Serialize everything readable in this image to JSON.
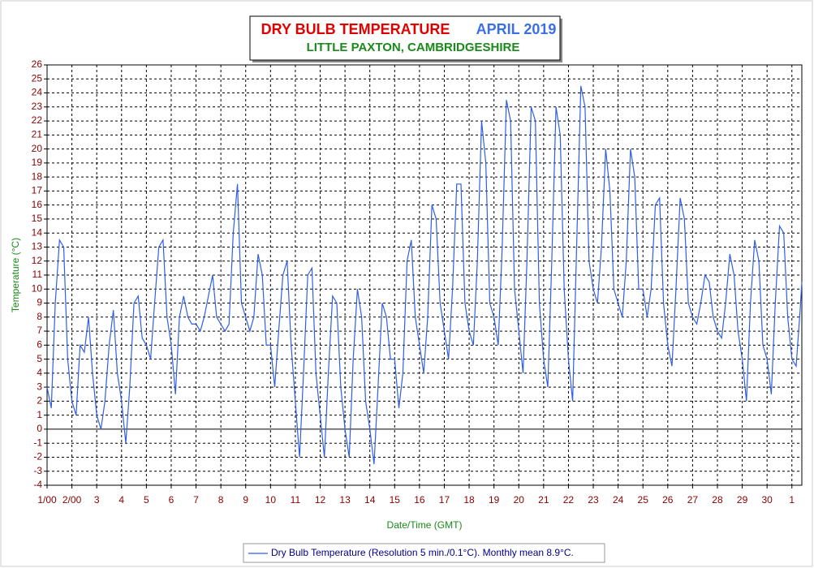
{
  "chart_data": {
    "type": "line",
    "title": "DRY BULB TEMPERATURE",
    "title_date": "APRIL 2019",
    "subtitle": "LITTLE PAXTON, CAMBRIDGESHIRE",
    "y_label": "Temperature (°C)",
    "x_label": "Date/Time (GMT)",
    "xlim": [
      0,
      30.4
    ],
    "xticks": [
      {
        "value": 0,
        "label": "1/00"
      },
      {
        "value": 1,
        "label": "2/00"
      },
      {
        "value": 2,
        "label": "3"
      },
      {
        "value": 3,
        "label": "4"
      },
      {
        "value": 4,
        "label": "5"
      },
      {
        "value": 5,
        "label": "6"
      },
      {
        "value": 6,
        "label": "7"
      },
      {
        "value": 7,
        "label": "8"
      },
      {
        "value": 8,
        "label": "9"
      },
      {
        "value": 9,
        "label": "10"
      },
      {
        "value": 10,
        "label": "11"
      },
      {
        "value": 11,
        "label": "12"
      },
      {
        "value": 12,
        "label": "13"
      },
      {
        "value": 13,
        "label": "14"
      },
      {
        "value": 14,
        "label": "15"
      },
      {
        "value": 15,
        "label": "16"
      },
      {
        "value": 16,
        "label": "17"
      },
      {
        "value": 17,
        "label": "18"
      },
      {
        "value": 18,
        "label": "19"
      },
      {
        "value": 19,
        "label": "20"
      },
      {
        "value": 20,
        "label": "21"
      },
      {
        "value": 21,
        "label": "22"
      },
      {
        "value": 22,
        "label": "23"
      },
      {
        "value": 23,
        "label": "24"
      },
      {
        "value": 24,
        "label": "25"
      },
      {
        "value": 25,
        "label": "26"
      },
      {
        "value": 26,
        "label": "27"
      },
      {
        "value": 27,
        "label": "28"
      },
      {
        "value": 28,
        "label": "29"
      },
      {
        "value": 29,
        "label": "30"
      },
      {
        "value": 30,
        "label": "1"
      }
    ],
    "ylim": [
      -4,
      26
    ],
    "yticks": [
      -4,
      -3,
      -2,
      -1,
      0,
      1,
      2,
      3,
      4,
      5,
      6,
      7,
      8,
      9,
      10,
      11,
      12,
      13,
      14,
      15,
      16,
      17,
      18,
      19,
      20,
      21,
      22,
      23,
      24,
      25,
      26
    ],
    "grid": true,
    "x": [
      0,
      0.17,
      0.33,
      0.5,
      0.67,
      0.83,
      1,
      1.17,
      1.33,
      1.5,
      1.67,
      1.83,
      2,
      2.17,
      2.33,
      2.5,
      2.67,
      2.83,
      3,
      3.17,
      3.33,
      3.5,
      3.67,
      3.83,
      4,
      4.17,
      4.33,
      4.5,
      4.67,
      4.83,
      5,
      5.17,
      5.33,
      5.5,
      5.67,
      5.83,
      6,
      6.17,
      6.33,
      6.5,
      6.67,
      6.83,
      7,
      7.17,
      7.33,
      7.5,
      7.67,
      7.83,
      8,
      8.17,
      8.33,
      8.5,
      8.67,
      8.83,
      9,
      9.17,
      9.33,
      9.5,
      9.67,
      9.83,
      10,
      10.17,
      10.33,
      10.5,
      10.67,
      10.83,
      11,
      11.17,
      11.33,
      11.5,
      11.67,
      11.83,
      12,
      12.17,
      12.33,
      12.5,
      12.67,
      12.83,
      13,
      13.17,
      13.33,
      13.5,
      13.67,
      13.83,
      14,
      14.17,
      14.33,
      14.5,
      14.67,
      14.83,
      15,
      15.17,
      15.33,
      15.5,
      15.67,
      15.83,
      16,
      16.17,
      16.33,
      16.5,
      16.67,
      16.83,
      17,
      17.17,
      17.33,
      17.5,
      17.67,
      17.83,
      18,
      18.17,
      18.33,
      18.5,
      18.67,
      18.83,
      19,
      19.17,
      19.33,
      19.5,
      19.67,
      19.83,
      20,
      20.17,
      20.33,
      20.5,
      20.67,
      20.83,
      21,
      21.17,
      21.33,
      21.5,
      21.67,
      21.83,
      22,
      22.17,
      22.33,
      22.5,
      22.67,
      22.83,
      23,
      23.17,
      23.33,
      23.5,
      23.67,
      23.83,
      24,
      24.17,
      24.33,
      24.5,
      24.67,
      24.83,
      25,
      25.17,
      25.33,
      25.5,
      25.67,
      25.83,
      26,
      26.17,
      26.33,
      26.5,
      26.67,
      26.83,
      27,
      27.17,
      27.33,
      27.5,
      27.67,
      27.83,
      28,
      28.17,
      28.33,
      28.5,
      28.67,
      28.83,
      29,
      29.17,
      29.33,
      29.5,
      29.67,
      29.83,
      30,
      30.17,
      30.33,
      30.4
    ],
    "series": [
      {
        "name": "Dry Bulb Temperature (Resolution 5 min./0.1°C). Monthly mean 8.9°C.",
        "color": "#2f5fe8",
        "values": [
          3,
          1.5,
          9,
          13.5,
          13,
          5,
          2,
          1,
          6,
          5.5,
          8,
          4,
          1,
          0,
          2,
          6,
          8.5,
          4,
          2,
          -1,
          3,
          9,
          9.5,
          6.5,
          6,
          5,
          9,
          13,
          13.5,
          8,
          6,
          2.5,
          8,
          9.5,
          8,
          7.5,
          7.5,
          7,
          8,
          9.5,
          11,
          8,
          7.5,
          7,
          7.5,
          14,
          17.5,
          9,
          8,
          7,
          8,
          12.5,
          11,
          6,
          6,
          3,
          7,
          11,
          12,
          6,
          2,
          -2,
          4,
          11,
          11.5,
          4,
          1,
          -2,
          4,
          9.5,
          9,
          3,
          0,
          -2,
          5,
          10,
          8,
          2,
          0,
          -2.5,
          3,
          9,
          8,
          5,
          5,
          1.5,
          4,
          12,
          13.5,
          8,
          6,
          4,
          8,
          16,
          15,
          9,
          7,
          5,
          10,
          17.5,
          17.5,
          9,
          7,
          6,
          12,
          22,
          19,
          9,
          8,
          6,
          13,
          23.5,
          22,
          10,
          7,
          4,
          12,
          23,
          22,
          9,
          5,
          3,
          12,
          23,
          21,
          10,
          5,
          2,
          13,
          24.5,
          23,
          12,
          10,
          9,
          13,
          20,
          17,
          10,
          9,
          8,
          12,
          20,
          18,
          10,
          10,
          8,
          10,
          16,
          16.5,
          9,
          6,
          4.5,
          10,
          16.5,
          15,
          9,
          8,
          7.5,
          9,
          11,
          10.5,
          8,
          7,
          6.5,
          9,
          12.5,
          11,
          7,
          5,
          2,
          9,
          13.5,
          12,
          6,
          5,
          2.5,
          9,
          14.5,
          14,
          8,
          5,
          4.5,
          8.5,
          10.5
        ]
      }
    ]
  }
}
